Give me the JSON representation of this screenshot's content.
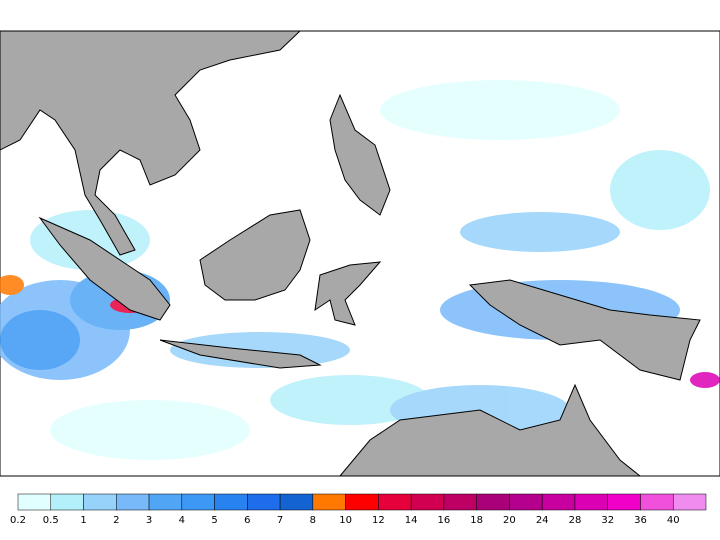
{
  "colorbar": {
    "labels": [
      0.2,
      0.5,
      1,
      2,
      3,
      4,
      5,
      6,
      7,
      8,
      10,
      12,
      14,
      16,
      18,
      20,
      24,
      28,
      32,
      36,
      40
    ],
    "colors": [
      "#e1ffff",
      "#b4f0fa",
      "#96d2fa",
      "#78b9fa",
      "#50a5f5",
      "#3c97f5",
      "#2883f0",
      "#1e6eeb",
      "#1463d2",
      "#ff7800",
      "#ff0000",
      "#e6003c",
      "#d20050",
      "#be0064",
      "#aa0078",
      "#b4008c",
      "#c800a0",
      "#dc00b4",
      "#f000c8",
      "#f050dc",
      "#f08cf0"
    ]
  }
}
